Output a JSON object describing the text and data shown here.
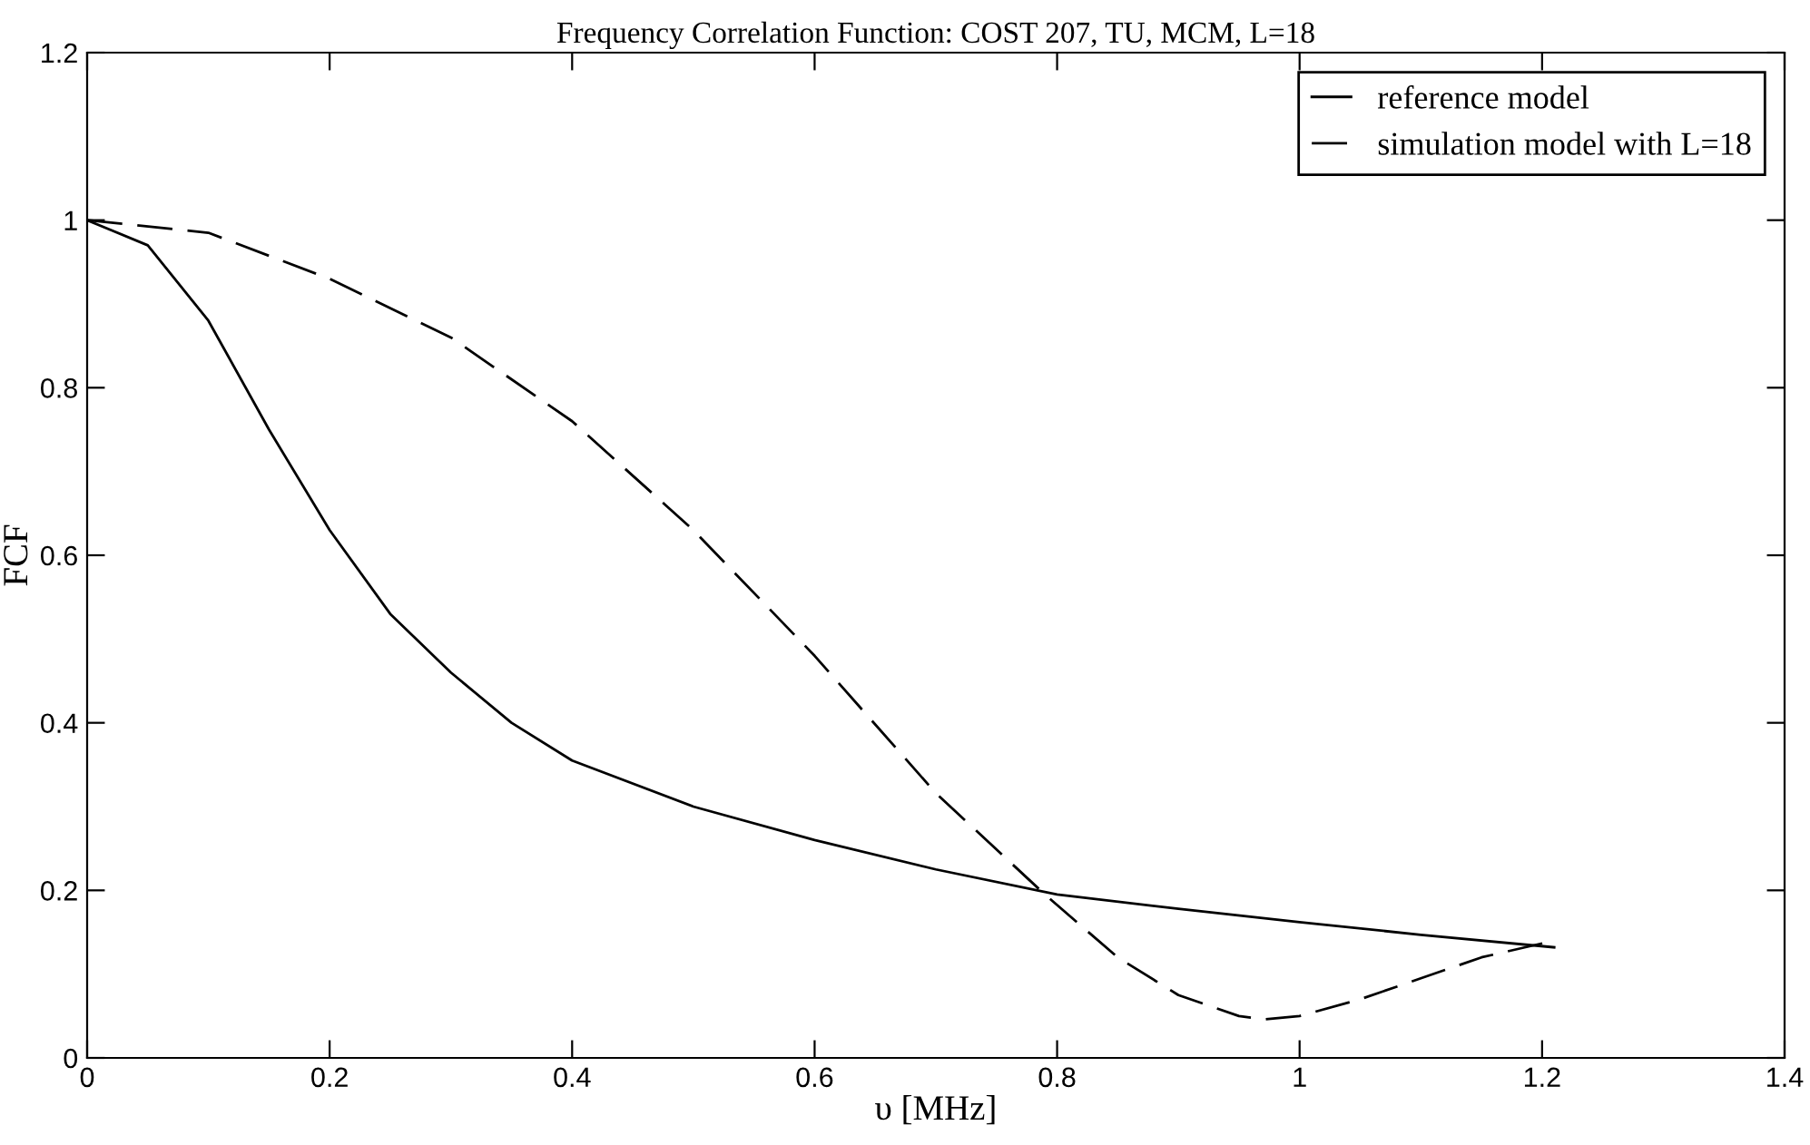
{
  "chart_data": {
    "type": "line",
    "title": "Frequency Correlation Function: COST 207, TU, MCM, L=18",
    "xlabel": "υ [MHz]",
    "ylabel": "FCF",
    "xlim": [
      0,
      1.4
    ],
    "xticks": [
      0,
      0.2,
      0.4,
      0.6,
      0.8,
      1,
      1.2,
      1.4
    ],
    "ylim": [
      0,
      1.2
    ],
    "yticks": [
      0,
      0.2,
      0.4,
      0.6,
      0.8,
      1,
      1.2
    ],
    "grid": false,
    "legend": "top right",
    "series": [
      {
        "name": "reference model",
        "color": "#000000",
        "line_style": "solid",
        "x": [
          0,
          0.05,
          0.1,
          0.15,
          0.2,
          0.25,
          0.3,
          0.35,
          0.4,
          0.5,
          0.6,
          0.7,
          0.8,
          0.9,
          1.0,
          1.1,
          1.21
        ],
        "values": [
          1,
          0.97,
          0.88,
          0.75,
          0.63,
          0.53,
          0.46,
          0.4,
          0.355,
          0.3,
          0.26,
          0.225,
          0.195,
          0.178,
          0.162,
          0.147,
          0.132
        ]
      },
      {
        "name": "simulation model with L=18",
        "color": "#000000",
        "line_style": "dashed",
        "x": [
          0,
          0.1,
          0.2,
          0.3,
          0.4,
          0.5,
          0.6,
          0.7,
          0.79,
          0.85,
          0.9,
          0.95,
          0.97,
          1.0,
          1.05,
          1.1,
          1.15,
          1.21
        ],
        "values": [
          1,
          0.985,
          0.93,
          0.86,
          0.76,
          0.63,
          0.48,
          0.316,
          0.195,
          0.12,
          0.075,
          0.05,
          0.046,
          0.05,
          0.07,
          0.095,
          0.12,
          0.14
        ]
      }
    ]
  }
}
